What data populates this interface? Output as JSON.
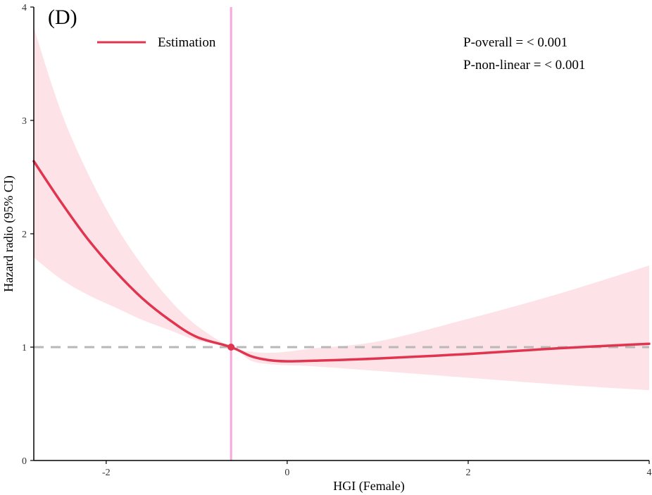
{
  "chart_data": {
    "type": "line",
    "panel_label": "(D)",
    "title": "",
    "xlabel": "HGI (Female)",
    "ylabel": "Hazard  radio (95% CI)",
    "xlim": [
      -2.8,
      4.0
    ],
    "ylim": [
      0,
      4
    ],
    "x_ticks": [
      -2,
      0,
      2,
      4
    ],
    "x_tick_labels": [
      "-2",
      "0",
      "2",
      "4"
    ],
    "y_ticks": [
      0,
      1,
      2,
      3,
      4
    ],
    "y_tick_labels": [
      "0",
      "1",
      "2",
      "3",
      "4"
    ],
    "grid": false,
    "legend": {
      "position": "top-left",
      "entries": [
        "Estimation"
      ]
    },
    "annotations": [
      "P-overall = < 0.001",
      "P-non-linear = < 0.001"
    ],
    "reference": {
      "hr": 1,
      "x": -0.62,
      "hr_line_style": "dashed"
    },
    "series": [
      {
        "name": "Estimation",
        "x": [
          -2.8,
          -2.5,
          -2.2,
          -1.9,
          -1.6,
          -1.3,
          -1.0,
          -0.62,
          -0.4,
          -0.2,
          0.0,
          0.3,
          1.0,
          2.0,
          3.0,
          4.0
        ],
        "y": [
          2.64,
          2.28,
          1.95,
          1.67,
          1.43,
          1.24,
          1.09,
          1.0,
          0.92,
          0.885,
          0.875,
          0.88,
          0.9,
          0.94,
          0.99,
          1.03
        ],
        "ci_lower": [
          1.79,
          1.6,
          1.46,
          1.35,
          1.24,
          1.15,
          1.06,
          1.0,
          0.88,
          0.85,
          0.84,
          0.83,
          0.79,
          0.73,
          0.67,
          0.62
        ],
        "ci_upper": [
          3.82,
          3.08,
          2.53,
          2.08,
          1.72,
          1.42,
          1.19,
          1.0,
          0.96,
          0.95,
          0.96,
          0.99,
          1.05,
          1.25,
          1.47,
          1.72
        ]
      }
    ],
    "colors": {
      "line": "#e0344f",
      "ci_band": "#fde3e7",
      "vline": "#f9a8dc",
      "reference_line": "#b8b8b8",
      "axis": "#000000"
    }
  }
}
